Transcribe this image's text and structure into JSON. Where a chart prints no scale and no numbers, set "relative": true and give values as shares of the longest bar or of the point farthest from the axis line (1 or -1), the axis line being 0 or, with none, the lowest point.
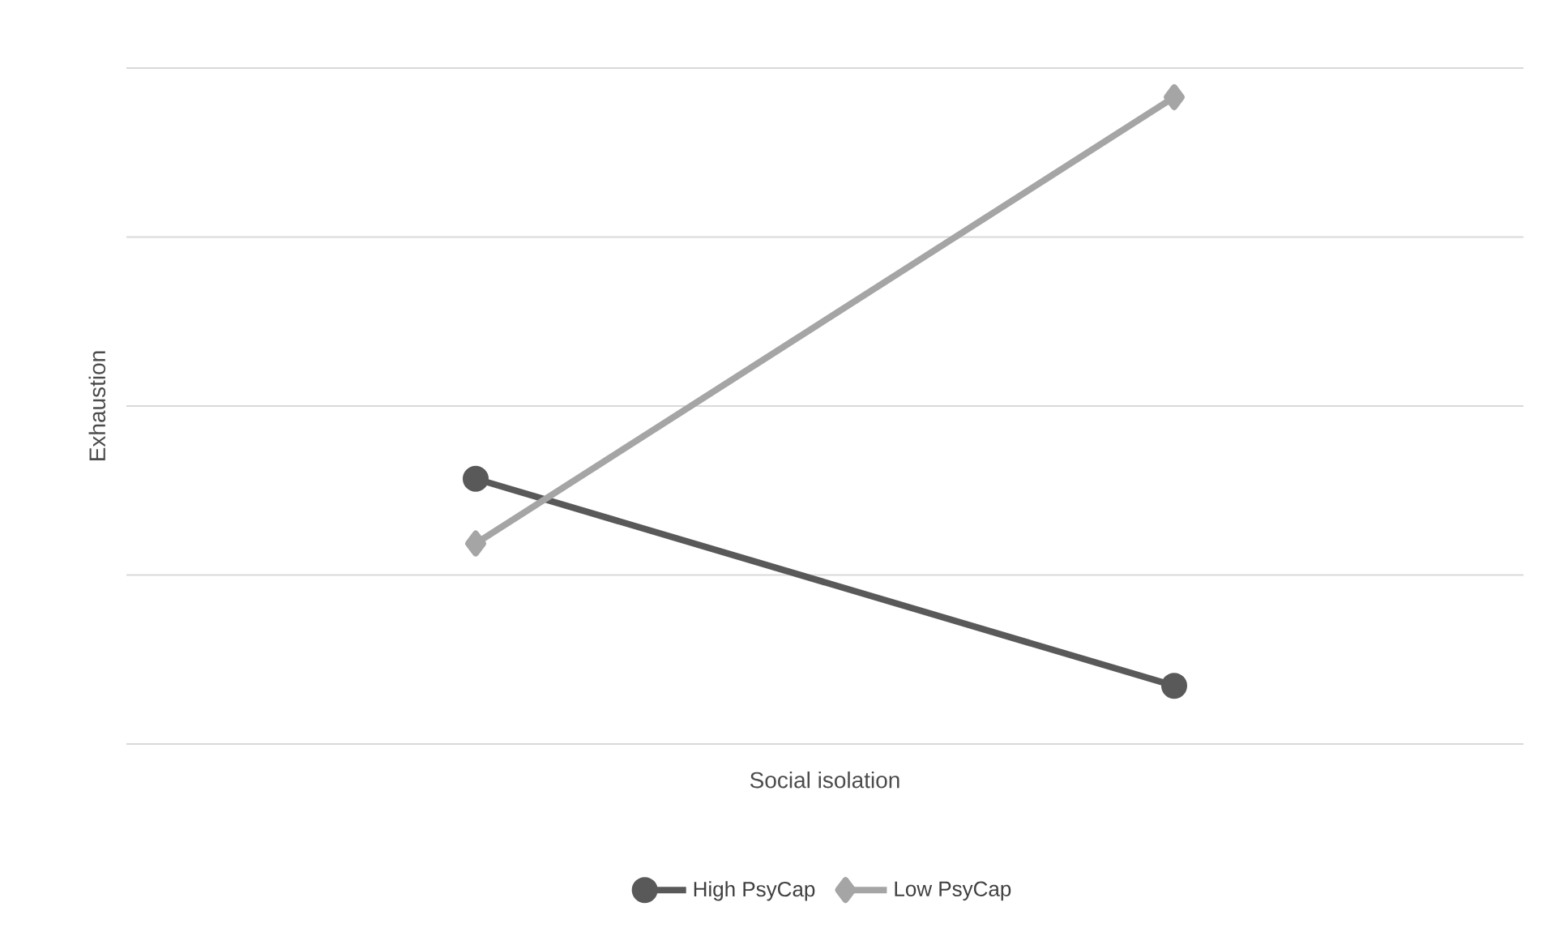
{
  "chart_data": {
    "type": "line",
    "xlabel": "Social isolation",
    "ylabel": "Exhaustion",
    "categories": [
      null,
      null
    ],
    "relative": true,
    "grid": "y",
    "legend": "bottom",
    "series": [
      {
        "name": "High PsyCap",
        "color": "#595959",
        "marker": "circle",
        "values": [
          0.41,
          0.09
        ]
      },
      {
        "name": "Low PsyCap",
        "color": "#a5a5a5",
        "marker": "diamond",
        "values": [
          0.31,
          1
        ]
      }
    ]
  }
}
